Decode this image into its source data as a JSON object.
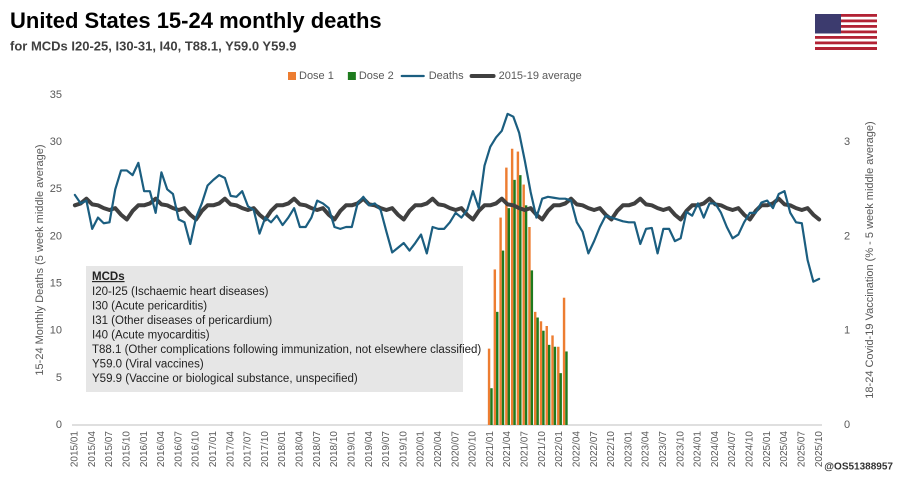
{
  "chart_data": {
    "type": "bar",
    "title": "United States 15-24 monthly deaths",
    "subtitle": "for MCDs I20-25, I30-31, I40, T88.1, Y59.0 Y59.9",
    "ylabel": "15-24 Monthly Deaths (5 week middle average)",
    "y2label": "18-24 Covid-19 Vaccination (% - 5 week middle average)",
    "credit": "@OS51388957",
    "annotation": {
      "title": "MCDs",
      "lines": [
        "I20-I25 (Ischaemic heart diseases)",
        "I30 (Acute pericarditis)",
        "I31 (Other diseases of pericardium)",
        "I40 (Acute myocarditis)",
        "T88.1 (Other complications following immunization, not elsewhere classified)",
        "Y59.0 (Viral vaccines)",
        "Y59.9 (Vaccine or biological substance, unspecified)"
      ]
    },
    "ylim": [
      0,
      35
    ],
    "yticks": [
      0,
      5,
      10,
      15,
      20,
      25,
      30,
      35
    ],
    "y2lim": [
      0,
      3.5
    ],
    "y2ticks": [
      0,
      1,
      2,
      3
    ],
    "grid": false,
    "legend": "top",
    "categories": [
      "2015/01",
      null,
      null,
      "2015/04",
      null,
      null,
      "2015/07",
      null,
      null,
      "2015/10",
      null,
      null,
      "2016/01",
      null,
      null,
      "2016/04",
      null,
      null,
      "2016/07",
      null,
      null,
      "2016/10",
      null,
      null,
      "2017/01",
      null,
      null,
      "2017/04",
      null,
      null,
      "2017/07",
      null,
      null,
      "2017/10",
      null,
      null,
      "2018/01",
      null,
      null,
      "2018/04",
      null,
      null,
      "2018/07",
      null,
      null,
      "2018/10",
      null,
      null,
      "2019/01",
      null,
      null,
      "2019/04",
      null,
      null,
      "2019/07",
      null,
      null,
      "2019/10",
      null,
      null,
      "2020/01",
      null,
      null,
      "2020/04",
      null,
      null,
      "2020/07",
      null,
      null,
      "2020/10",
      null,
      null,
      "2021/01",
      null,
      null,
      "2021/04",
      null,
      null,
      "2021/07",
      null,
      null,
      "2021/10",
      null,
      null,
      "2022/01",
      null,
      null,
      "2022/04",
      null,
      null,
      "2022/07",
      null,
      null,
      "2022/10",
      null,
      null,
      "2023/01",
      null,
      null,
      "2023/04",
      null,
      null,
      "2023/07",
      null,
      null,
      "2023/10",
      null,
      null,
      "2024/01",
      null,
      null,
      "2024/04",
      null,
      null,
      "2024/07",
      null,
      null,
      "2024/10",
      null,
      null,
      "2025/01",
      null,
      null,
      "2025/04",
      null,
      null,
      "2025/07",
      null,
      null,
      "2025/10"
    ],
    "series": [
      {
        "name": "Dose 1",
        "type": "bar",
        "axis": "y2",
        "color": "#ed7d31",
        "values": [
          null,
          null,
          null,
          null,
          null,
          null,
          null,
          null,
          null,
          null,
          null,
          null,
          null,
          null,
          null,
          null,
          null,
          null,
          null,
          null,
          null,
          null,
          null,
          null,
          null,
          null,
          null,
          null,
          null,
          null,
          null,
          null,
          null,
          null,
          null,
          null,
          null,
          null,
          null,
          null,
          null,
          null,
          null,
          null,
          null,
          null,
          null,
          null,
          null,
          null,
          null,
          null,
          null,
          null,
          null,
          null,
          null,
          null,
          null,
          null,
          null,
          null,
          null,
          null,
          null,
          null,
          null,
          null,
          null,
          null,
          null,
          null,
          0.81,
          1.65,
          2.2,
          2.73,
          2.93,
          2.9,
          2.55,
          2.1,
          1.2,
          1.1,
          1.05,
          0.95,
          0.83,
          1.35,
          null,
          null,
          null,
          null,
          null,
          null,
          null,
          null,
          null,
          null,
          null,
          null,
          null,
          null,
          null,
          null,
          null,
          null,
          null,
          null,
          null,
          null,
          null,
          null,
          null,
          null,
          null,
          null,
          null,
          null,
          null,
          null,
          null,
          null,
          null,
          null,
          null,
          null,
          null,
          null,
          null,
          null,
          null,
          null
        ]
      },
      {
        "name": "Dose 2",
        "type": "bar",
        "axis": "y2",
        "color": "#1e7b1e",
        "values": [
          null,
          null,
          null,
          null,
          null,
          null,
          null,
          null,
          null,
          null,
          null,
          null,
          null,
          null,
          null,
          null,
          null,
          null,
          null,
          null,
          null,
          null,
          null,
          null,
          null,
          null,
          null,
          null,
          null,
          null,
          null,
          null,
          null,
          null,
          null,
          null,
          null,
          null,
          null,
          null,
          null,
          null,
          null,
          null,
          null,
          null,
          null,
          null,
          null,
          null,
          null,
          null,
          null,
          null,
          null,
          null,
          null,
          null,
          null,
          null,
          null,
          null,
          null,
          null,
          null,
          null,
          null,
          null,
          null,
          null,
          null,
          null,
          0.39,
          1.2,
          1.85,
          2.3,
          2.6,
          2.65,
          2.33,
          1.64,
          1.14,
          1.0,
          0.85,
          0.83,
          0.55,
          0.78,
          null,
          null,
          null,
          null,
          null,
          null,
          null,
          null,
          null,
          null,
          null,
          null,
          null,
          null,
          null,
          null,
          null,
          null,
          null,
          null,
          null,
          null,
          null,
          null,
          null,
          null,
          null,
          null,
          null,
          null,
          null,
          null,
          null,
          null,
          null,
          null,
          null,
          null,
          null,
          null,
          null,
          null,
          null,
          null
        ]
      },
      {
        "name": "Deaths",
        "type": "line",
        "color": "#1b5e80",
        "width": 2.2,
        "values": [
          24.4,
          23.5,
          23.8,
          20.8,
          22,
          21.4,
          21.5,
          25,
          27,
          27,
          26.5,
          27.8,
          24.8,
          24.8,
          22.5,
          26.8,
          25,
          24.5,
          21.8,
          21.5,
          19.2,
          22,
          23.5,
          25.4,
          26,
          26.5,
          26.2,
          24.3,
          24.2,
          24.8,
          23.2,
          22.8,
          20.3,
          22,
          21.5,
          22.2,
          21.2,
          22,
          23,
          21,
          21,
          22,
          23.8,
          23.5,
          23,
          21,
          20.8,
          21,
          21,
          23.5,
          24.2,
          23.3,
          23.5,
          22.8,
          20.5,
          18.3,
          18.8,
          19.3,
          18.5,
          19.3,
          20.2,
          18.2,
          21,
          20.8,
          20.8,
          21.5,
          22.5,
          22,
          22.8,
          24.8,
          23,
          27.5,
          29.5,
          30.5,
          31.2,
          33,
          32.7,
          31,
          28,
          24.7,
          22,
          24,
          24.2,
          24.1,
          24,
          24,
          23.8,
          21.5,
          20.5,
          18.2,
          19.5,
          21,
          22.2,
          22,
          21.8,
          21.6,
          21.5,
          21.5,
          19.2,
          20.8,
          20.9,
          18.2,
          20.8,
          20.8,
          19.5,
          19.8,
          22.6,
          22.2,
          23.5,
          22,
          23.5,
          23.5,
          22.5,
          21,
          19.8,
          20.2,
          21.5,
          22.5,
          22.5,
          23.6,
          23.8,
          23,
          24.5,
          24.8,
          22.5,
          21.5,
          21.4,
          17.5,
          15.2,
          15.5
        ]
      },
      {
        "name": "2015-19 average",
        "type": "line",
        "color": "#404040",
        "width": 4,
        "values": [
          23.3,
          23.5,
          24,
          23.4,
          23.3,
          23,
          22.8,
          23,
          22.3,
          21.8,
          22.7,
          23.3,
          23.3,
          23.5,
          24,
          23.4,
          23.3,
          23,
          22.8,
          23,
          22.3,
          21.8,
          22.7,
          23.3,
          23.3,
          23.5,
          24,
          23.4,
          23.3,
          23,
          22.8,
          23,
          22.3,
          21.8,
          22.7,
          23.3,
          23.3,
          23.5,
          24,
          23.4,
          23.3,
          23,
          22.8,
          23,
          22.3,
          21.8,
          22.7,
          23.3,
          23.3,
          23.5,
          24,
          23.4,
          23.3,
          23,
          22.8,
          23,
          22.3,
          21.8,
          22.7,
          23.3,
          23.3,
          23.5,
          24,
          23.4,
          23.3,
          23,
          22.8,
          23,
          22.3,
          21.8,
          22.7,
          23.3,
          23.3,
          23.5,
          24,
          23.4,
          23.3,
          23,
          22.8,
          23,
          22.3,
          21.8,
          22.7,
          23.3,
          23.3,
          23.5,
          24,
          23.4,
          23.3,
          23,
          22.8,
          23,
          22.3,
          21.8,
          22.7,
          23.3,
          23.3,
          23.5,
          24,
          23.4,
          23.3,
          23,
          22.8,
          23,
          22.3,
          21.8,
          22.7,
          23.3,
          23.3,
          23.5,
          24,
          23.4,
          23.3,
          23,
          22.8,
          23,
          22.3,
          21.8,
          22.7,
          23.3,
          23.3,
          23.5,
          24,
          23.4,
          23.3,
          23,
          22.8,
          23,
          22.3,
          21.8
        ]
      }
    ]
  }
}
